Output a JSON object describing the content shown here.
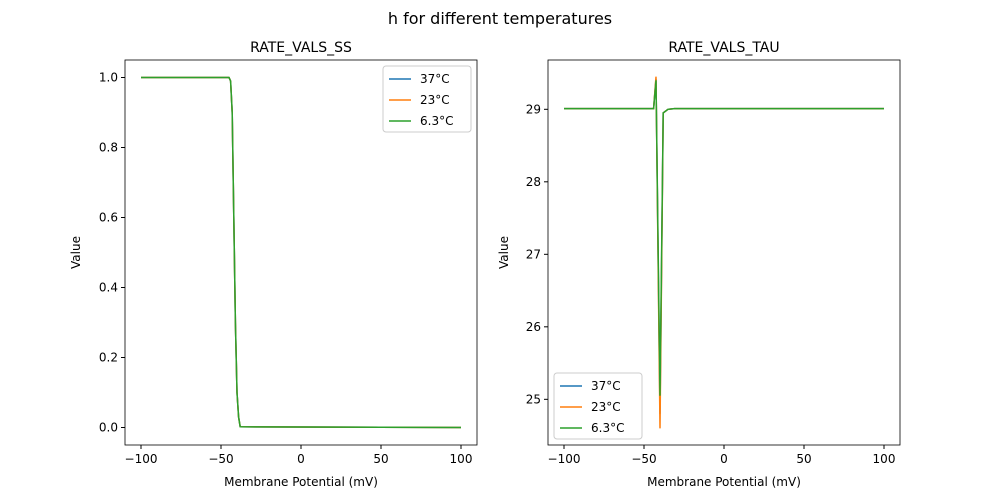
{
  "suptitle": "h for different temperatures",
  "chart_data": [
    {
      "type": "line",
      "title": "RATE_VALS_SS",
      "xlabel": "Membrane Potential (mV)",
      "ylabel": "Value",
      "xlim": [
        -110,
        110
      ],
      "ylim": [
        -0.05,
        1.05
      ],
      "xticks": [
        -100,
        -50,
        0,
        50,
        100
      ],
      "yticks": [
        0.0,
        0.2,
        0.4,
        0.6,
        0.8,
        1.0
      ],
      "ytick_labels": [
        "0.0",
        "0.2",
        "0.4",
        "0.6",
        "0.8",
        "1.0"
      ],
      "legend": "top-right",
      "grid": false,
      "series": [
        {
          "name": "37°C",
          "color": "#1f77b4",
          "x": [
            -100,
            -45,
            -44,
            -43,
            -42,
            -41,
            -40,
            -39,
            -38,
            100
          ],
          "y": [
            1,
            1,
            0.99,
            0.9,
            0.6,
            0.3,
            0.1,
            0.03,
            0.002,
            0
          ]
        },
        {
          "name": "23°C",
          "color": "#ff7f0e",
          "x": [
            -100,
            -45,
            -44,
            -43,
            -42,
            -41,
            -40,
            -39,
            -38,
            100
          ],
          "y": [
            1,
            1,
            0.99,
            0.9,
            0.6,
            0.3,
            0.1,
            0.03,
            0.002,
            0
          ]
        },
        {
          "name": "6.3°C",
          "color": "#2ca02c",
          "x": [
            -100,
            -45,
            -44,
            -43,
            -42,
            -41,
            -40,
            -39,
            -38,
            100
          ],
          "y": [
            1,
            1,
            0.99,
            0.9,
            0.6,
            0.3,
            0.1,
            0.03,
            0.002,
            0
          ]
        }
      ]
    },
    {
      "type": "line",
      "title": "RATE_VALS_TAU",
      "xlabel": "Membrane Potential (mV)",
      "ylabel": "Value",
      "xlim": [
        -110,
        110
      ],
      "ylim": [
        24.37,
        29.68
      ],
      "xticks": [
        -100,
        -50,
        0,
        50,
        100
      ],
      "yticks": [
        25,
        26,
        27,
        28,
        29
      ],
      "ytick_labels": [
        "25",
        "26",
        "27",
        "28",
        "29"
      ],
      "legend": "bottom-left",
      "grid": false,
      "series": [
        {
          "name": "37°C",
          "color": "#1f77b4",
          "x": [
            -100,
            -44,
            -42.5,
            -40,
            -38,
            -35,
            -31,
            100
          ],
          "y": [
            29.01,
            29.01,
            29.42,
            24.8,
            28.95,
            29.0,
            29.01,
            29.01
          ]
        },
        {
          "name": "23°C",
          "color": "#ff7f0e",
          "x": [
            -100,
            -44,
            -42.5,
            -40,
            -38,
            -35,
            -31,
            100
          ],
          "y": [
            29.01,
            29.01,
            29.45,
            24.6,
            28.95,
            29.0,
            29.01,
            29.01
          ]
        },
        {
          "name": "6.3°C",
          "color": "#2ca02c",
          "x": [
            -100,
            -44,
            -42.5,
            -40,
            -38,
            -35,
            -31,
            100
          ],
          "y": [
            29.01,
            29.01,
            29.4,
            25.05,
            28.95,
            29.0,
            29.01,
            29.01
          ]
        }
      ]
    }
  ]
}
